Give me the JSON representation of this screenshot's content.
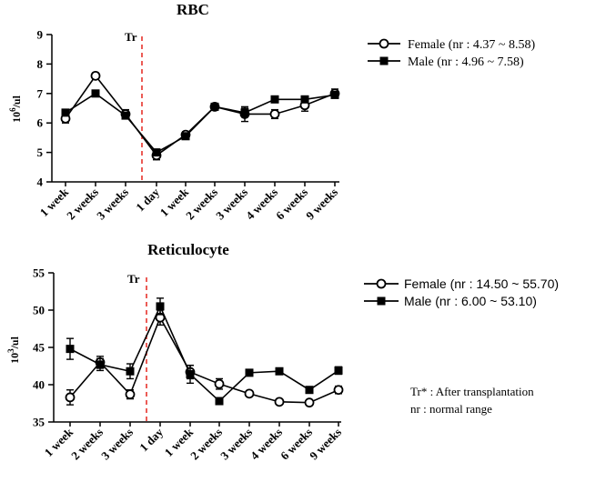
{
  "chart_data": [
    {
      "type": "line",
      "title": "RBC",
      "ylabel": "10⁶/ul",
      "ylim": [
        4,
        9
      ],
      "yticks": [
        4,
        5,
        6,
        7,
        8,
        9
      ],
      "categories": [
        "1 week",
        "2 weeks",
        "3 weeks",
        "1 day",
        "1 week",
        "2 weeks",
        "3 weeks",
        "4 weeks",
        "6 weeks",
        "9 weeks"
      ],
      "marker_label": "Tr",
      "marker_after_index": 2,
      "series": [
        {
          "name": "Female (nr : 4.37 ~ 8.58)",
          "marker": "open-circle",
          "values": [
            6.15,
            7.6,
            6.3,
            4.9,
            5.6,
            6.55,
            6.3,
            6.3,
            6.6,
            7.0
          ],
          "errors": [
            0.15,
            0.1,
            0.15,
            0.15,
            0.1,
            0.1,
            0.25,
            0.15,
            0.2,
            0.15
          ]
        },
        {
          "name": "Male (nr : 4.96 ~ 7.58)",
          "marker": "filled-square",
          "values": [
            6.35,
            7.0,
            6.25,
            5.0,
            5.55,
            6.55,
            6.35,
            6.8,
            6.8,
            6.95
          ],
          "errors": [
            0.1,
            0.05,
            0.1,
            0.1,
            0.1,
            0.1,
            0.15,
            0.05,
            0.05,
            0.1
          ]
        }
      ],
      "legend": "top-right"
    },
    {
      "type": "line",
      "title": "Reticulocyte",
      "ylabel": "10³/ul",
      "ylim": [
        35,
        55
      ],
      "yticks": [
        35,
        40,
        45,
        50,
        55
      ],
      "categories": [
        "1 week",
        "2 weeks",
        "3 weeks",
        "1 day",
        "1 week",
        "2 weeks",
        "3 weeks",
        "4 weeks",
        "6 weeks",
        "9 weeks"
      ],
      "marker_label": "Tr",
      "marker_after_index": 2,
      "series": [
        {
          "name": "Female (nr : 14.50 ~ 55.70)",
          "marker": "open-circle",
          "values": [
            38.3,
            43.0,
            38.7,
            49.0,
            41.7,
            40.1,
            38.8,
            37.7,
            37.6,
            39.3
          ],
          "errors": [
            1.0,
            0.8,
            0.6,
            1.0,
            0.9,
            0.7,
            0.2,
            0.2,
            0.2,
            0.5
          ]
        },
        {
          "name": "Male (nr : 6.00 ~ 53.10)",
          "marker": "filled-square",
          "values": [
            44.8,
            42.7,
            41.8,
            50.5,
            41.4,
            37.8,
            41.6,
            41.8,
            39.3,
            41.9
          ],
          "errors": [
            1.4,
            0.8,
            1.0,
            1.1,
            1.2,
            0.4,
            0.2,
            0.2,
            0.3,
            0.5
          ]
        }
      ],
      "legend": "top-right"
    }
  ],
  "notes": [
    "Tr* : After transplantation",
    "nr : normal range"
  ],
  "colors": {
    "axis": "#000000",
    "marker_line": "#e8332c"
  }
}
